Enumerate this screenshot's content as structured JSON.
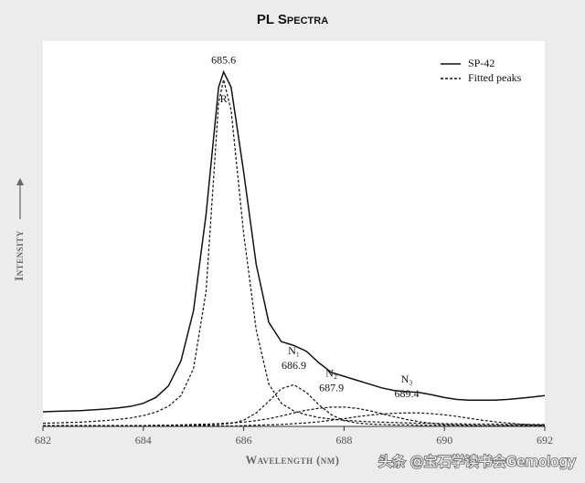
{
  "chart_data": {
    "type": "line",
    "title": "PL Spectra",
    "xlabel": "Wavelength (nm)",
    "ylabel": "Intensity",
    "watermark": "头条 @宝石学读书会Gemology",
    "x": [
      682,
      682.25,
      682.5,
      682.75,
      683,
      683.25,
      683.5,
      683.75,
      684,
      684.25,
      684.5,
      684.75,
      685,
      685.25,
      685.5,
      685.6,
      685.75,
      686,
      686.25,
      686.5,
      686.75,
      687,
      687.25,
      687.5,
      687.75,
      688,
      688.25,
      688.5,
      688.75,
      689,
      689.25,
      689.5,
      689.75,
      690,
      690.25,
      690.5,
      690.75,
      691,
      691.25,
      691.5,
      691.75,
      692
    ],
    "xlim": [
      682,
      692
    ],
    "xticks": [
      682,
      684,
      686,
      688,
      690,
      692
    ],
    "ylim": [
      0,
      100
    ],
    "legend": "upper right",
    "series": [
      {
        "name": "SP-42",
        "color": "#111111",
        "style": "solid",
        "peak_label": "685.6",
        "values": [
          3.8,
          3.9,
          4,
          4.1,
          4.3,
          4.5,
          4.8,
          5.2,
          6,
          7.5,
          10.5,
          17,
          30,
          55,
          88,
          92,
          88,
          66,
          42,
          27,
          22,
          21,
          19.5,
          16.5,
          14,
          13,
          12,
          11,
          10,
          9.3,
          9,
          8.8,
          8.2,
          7.5,
          7,
          6.8,
          6.8,
          6.8,
          7,
          7.3,
          7.6,
          8
        ]
      },
      {
        "name": "Fitted peaks",
        "color": "#111111",
        "style": "dashed",
        "label": "R",
        "values": [
          0.8,
          0.9,
          1,
          1.1,
          1.3,
          1.5,
          1.8,
          2.2,
          2.8,
          3.7,
          5.2,
          8,
          15,
          35,
          84,
          90,
          82,
          50,
          25,
          11,
          6,
          4,
          3,
          2.3,
          1.9,
          1.6,
          1.4,
          1.2,
          1.1,
          1,
          0.9,
          0.8,
          0.8,
          0.7,
          0.7,
          0.6,
          0.6,
          0.6,
          0.5,
          0.5,
          0.5,
          0.5
        ]
      },
      {
        "color": "#111111",
        "style": "dashed",
        "label": "N₁",
        "peak_label": "686.9",
        "values": [
          0.2,
          0.2,
          0.2,
          0.2,
          0.2,
          0.2,
          0.2,
          0.2,
          0.2,
          0.2,
          0.2,
          0.2,
          0.3,
          0.4,
          0.5,
          0.6,
          0.8,
          1.6,
          3.5,
          6.5,
          9.8,
          10.8,
          8.8,
          5.6,
          3,
          1.5,
          0.9,
          0.6,
          0.5,
          0.4,
          0.4,
          0.3,
          0.3,
          0.3,
          0.3,
          0.2,
          0.2,
          0.2,
          0.2,
          0.2,
          0.2,
          0.2
        ]
      },
      {
        "color": "#111111",
        "style": "dashed",
        "label": "N₂",
        "peak_label": "687.9",
        "values": [
          0.1,
          0.1,
          0.1,
          0.1,
          0.1,
          0.1,
          0.2,
          0.2,
          0.2,
          0.3,
          0.3,
          0.4,
          0.5,
          0.6,
          0.7,
          0.8,
          0.9,
          1.1,
          1.5,
          2,
          2.7,
          3.5,
          4.2,
          4.7,
          5,
          5,
          4.7,
          4.1,
          3.3,
          2.5,
          1.8,
          1.2,
          0.8,
          0.5,
          0.4,
          0.3,
          0.2,
          0.2,
          0.2,
          0.1,
          0.1,
          0.1
        ]
      },
      {
        "color": "#111111",
        "style": "dashed",
        "label": "N₃",
        "peak_label": "689.4",
        "values": [
          0.1,
          0.1,
          0.1,
          0.1,
          0.1,
          0.1,
          0.1,
          0.1,
          0.1,
          0.1,
          0.1,
          0.1,
          0.1,
          0.1,
          0.1,
          0.1,
          0.1,
          0.2,
          0.3,
          0.4,
          0.5,
          0.7,
          0.9,
          1.2,
          1.6,
          2,
          2.5,
          2.9,
          3.2,
          3.4,
          3.5,
          3.5,
          3.3,
          3,
          2.6,
          2.1,
          1.6,
          1.2,
          0.9,
          0.6,
          0.4,
          0.3
        ]
      }
    ]
  }
}
